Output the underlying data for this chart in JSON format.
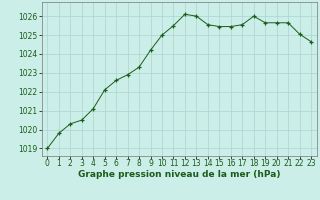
{
  "x": [
    0,
    1,
    2,
    3,
    4,
    5,
    6,
    7,
    8,
    9,
    10,
    11,
    12,
    13,
    14,
    15,
    16,
    17,
    18,
    19,
    20,
    21,
    22,
    23
  ],
  "y": [
    1019.0,
    1019.8,
    1020.3,
    1020.5,
    1021.1,
    1022.1,
    1022.6,
    1022.9,
    1023.3,
    1024.2,
    1025.0,
    1025.5,
    1026.1,
    1026.0,
    1025.55,
    1025.45,
    1025.45,
    1025.55,
    1026.0,
    1025.65,
    1025.65,
    1025.65,
    1025.05,
    1024.65
  ],
  "line_color": "#1a5c1a",
  "marker": "+",
  "marker_color": "#1a5c1a",
  "bg_color": "#cceee8",
  "grid_color": "#aad4ce",
  "ylabel_ticks": [
    1019,
    1020,
    1021,
    1022,
    1023,
    1024,
    1025,
    1026
  ],
  "xlabel": "Graphe pression niveau de la mer (hPa)",
  "ylim": [
    1018.6,
    1026.75
  ],
  "xlim": [
    -0.5,
    23.5
  ],
  "xlabel_fontsize": 6.5,
  "tick_fontsize": 5.5
}
